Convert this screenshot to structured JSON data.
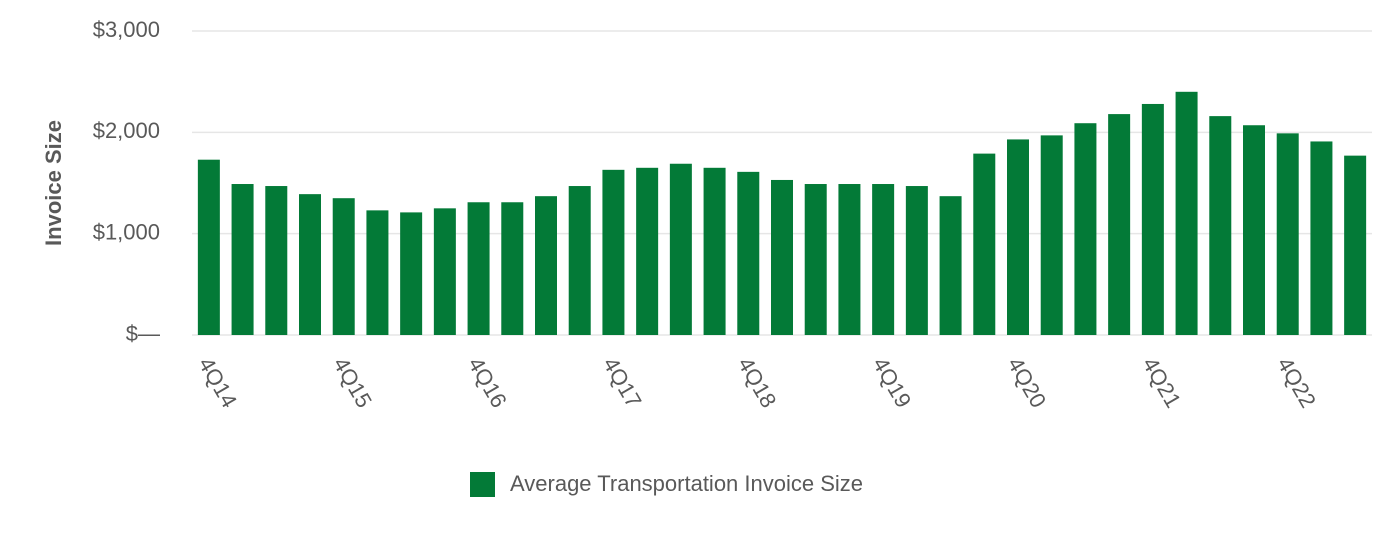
{
  "chart_data": {
    "type": "bar",
    "y_label": "Invoice Size",
    "categories": [
      "4Q14",
      null,
      null,
      null,
      "4Q15",
      null,
      null,
      null,
      "4Q16",
      null,
      null,
      null,
      "4Q17",
      null,
      null,
      null,
      "4Q18",
      null,
      null,
      null,
      "4Q19",
      null,
      null,
      null,
      "4Q20",
      null,
      null,
      null,
      "4Q21",
      null,
      null,
      null,
      "4Q22",
      null,
      null
    ],
    "series": [
      {
        "name": "Average Transportation Invoice Size",
        "color": "#037a37",
        "values": [
          1730,
          1490,
          1470,
          1390,
          1350,
          1230,
          1210,
          1250,
          1310,
          1310,
          1370,
          1470,
          1630,
          1650,
          1690,
          1650,
          1610,
          1530,
          1490,
          1490,
          1490,
          1470,
          1370,
          1790,
          1930,
          1970,
          2090,
          2180,
          2280,
          2400,
          2160,
          2070,
          1990,
          1910,
          1770
        ]
      }
    ],
    "ylim": [
      0,
      3000
    ],
    "yticks": [
      {
        "value": 0,
        "label": "$—"
      },
      {
        "value": 1000,
        "label": "$1,000"
      },
      {
        "value": 2000,
        "label": "$2,000"
      },
      {
        "value": 3000,
        "label": "$3,000"
      }
    ],
    "grid": true,
    "legend": "bottom"
  }
}
